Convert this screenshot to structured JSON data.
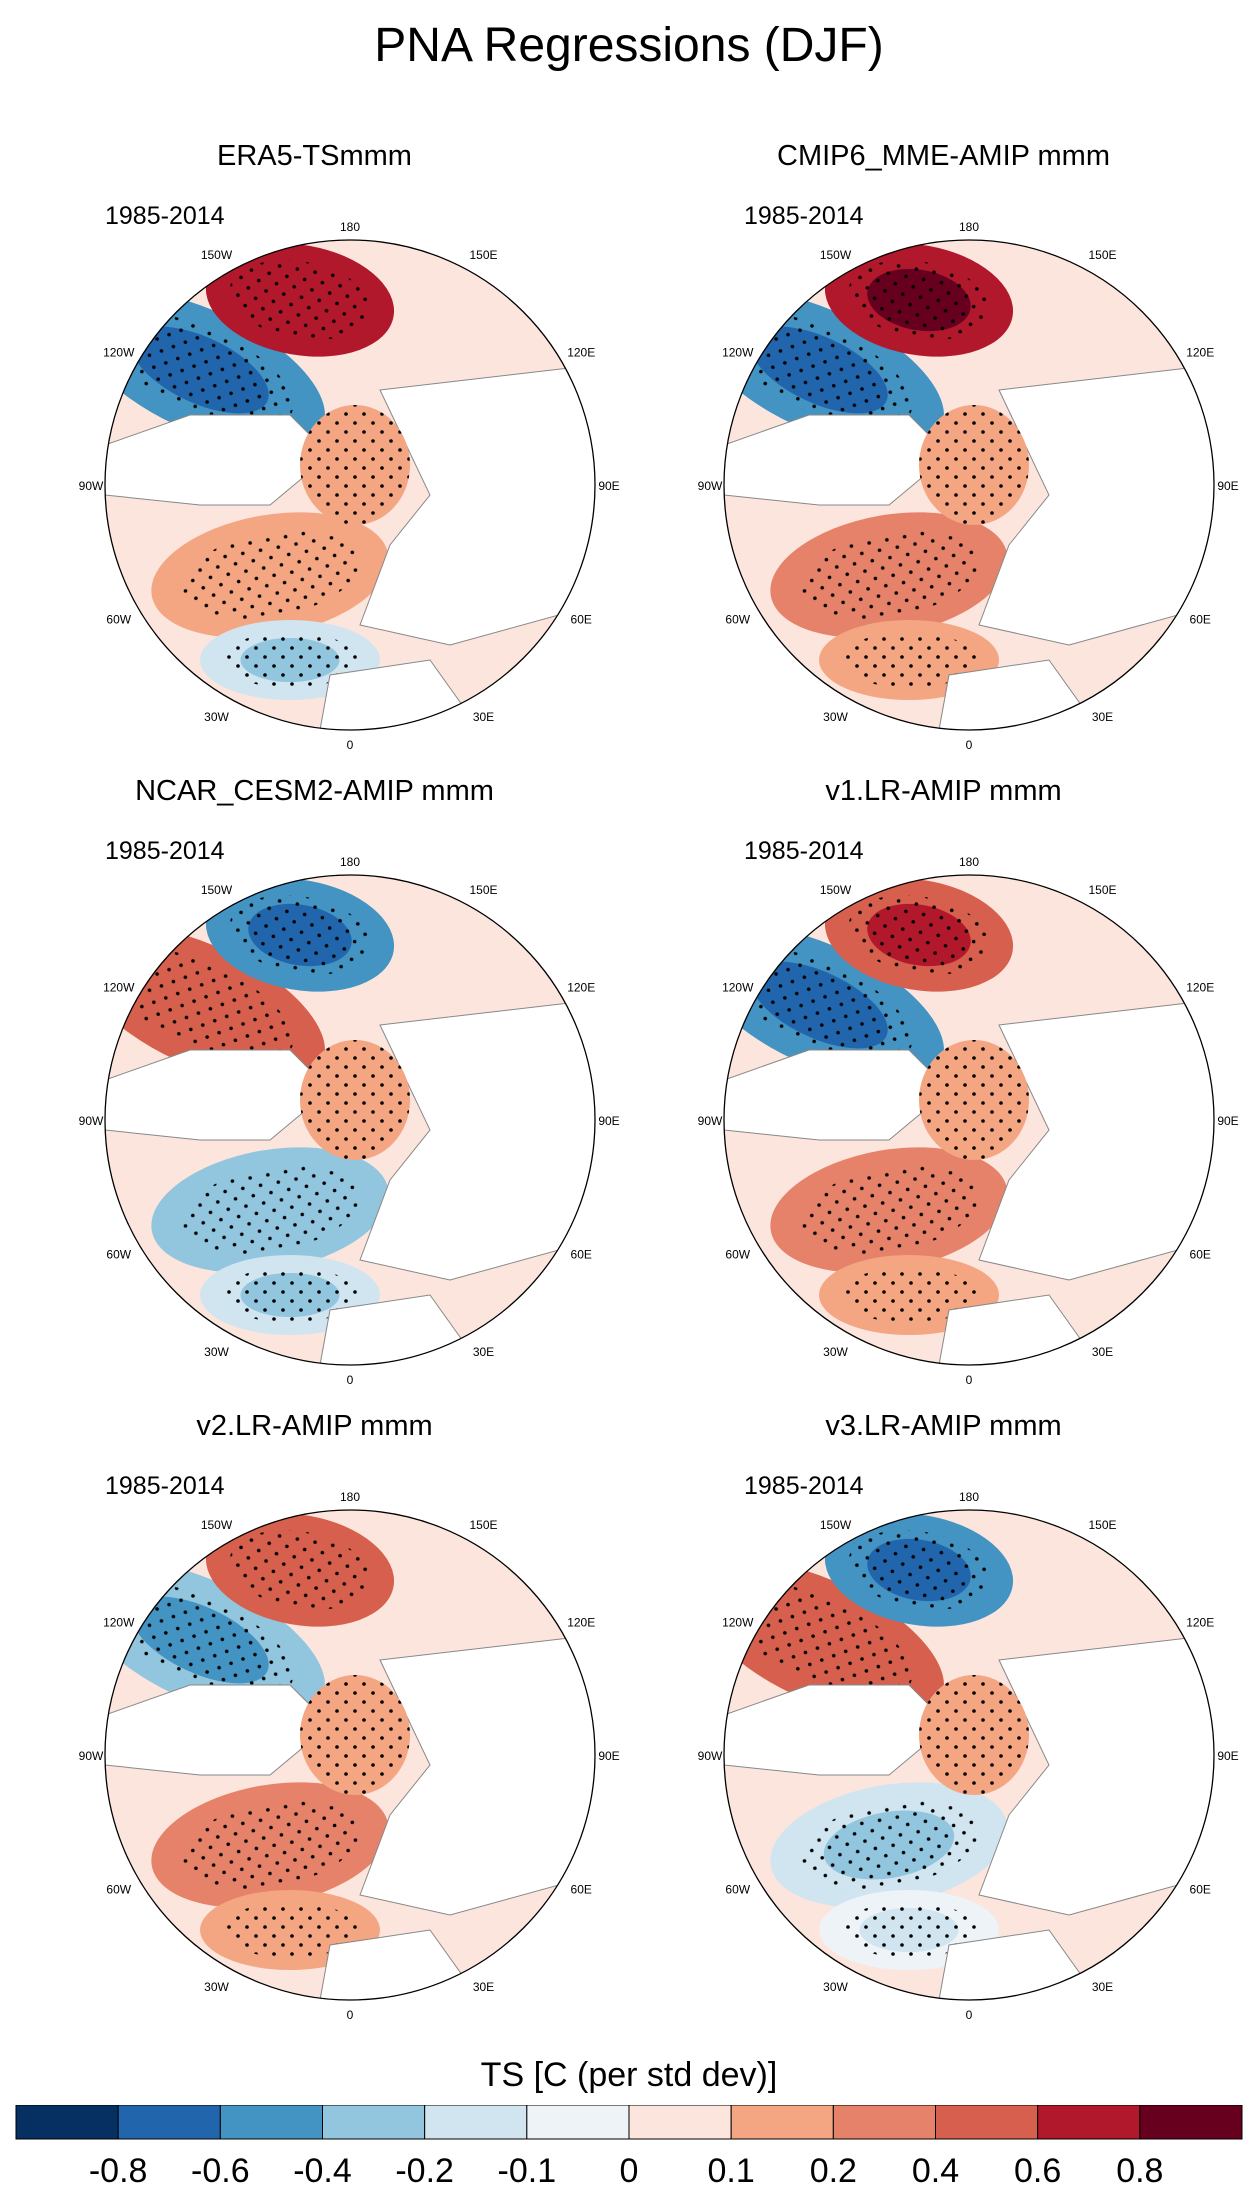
{
  "title": "PNA Regressions (DJF)",
  "chart_data": {
    "type": "heatmap",
    "projection": "north polar stereographic",
    "stippling": "statistically significant regions",
    "longitude_labels": [
      "180",
      "150E",
      "120E",
      "90E",
      "60E",
      "30E",
      "0",
      "30W",
      "60W",
      "90W",
      "120W",
      "150W"
    ],
    "panels": [
      {
        "title": "ERA5-TSmmm",
        "period": "1985-2014",
        "pattern": {
          "north_pacific": 0.6,
          "west_na_coast": -0.5,
          "arctic": 0.1,
          "atlantic": 0.1,
          "sub_atlantic": -0.2
        }
      },
      {
        "title": "CMIP6_MME-AMIP  mmm",
        "period": "1985-2014",
        "pattern": {
          "north_pacific": 0.7,
          "west_na_coast": -0.5,
          "arctic": 0.1,
          "atlantic": 0.2,
          "sub_atlantic": 0.1
        }
      },
      {
        "title": "NCAR_CESM2-AMIP  mmm",
        "period": "1985-2014",
        "pattern": {
          "north_pacific": -0.6,
          "west_na_coast": 0.4,
          "arctic": 0.1,
          "atlantic": -0.3,
          "sub_atlantic": -0.2
        }
      },
      {
        "title": "v1.LR-AMIP  mmm",
        "period": "1985-2014",
        "pattern": {
          "north_pacific": 0.5,
          "west_na_coast": -0.5,
          "arctic": 0.1,
          "atlantic": 0.3,
          "sub_atlantic": 0.1
        }
      },
      {
        "title": "v2.LR-AMIP  mmm",
        "period": "1985-2014",
        "pattern": {
          "north_pacific": 0.4,
          "west_na_coast": -0.4,
          "arctic": 0.1,
          "atlantic": 0.2,
          "sub_atlantic": 0.1
        }
      },
      {
        "title": "v3.LR-AMIP  mmm",
        "period": "1985-2014",
        "pattern": {
          "north_pacific": -0.6,
          "west_na_coast": 0.4,
          "arctic": 0.1,
          "atlantic": -0.2,
          "sub_atlantic": -0.1
        }
      }
    ],
    "colorbar": {
      "title": "TS [C (per std dev)]",
      "labels": [
        "-0.8",
        "-0.6",
        "-0.4",
        "-0.2",
        "-0.1",
        "0",
        "0.1",
        "0.2",
        "0.4",
        "0.6",
        "0.8"
      ],
      "colors": [
        "#053061",
        "#2166ac",
        "#4393c3",
        "#92c5de",
        "#d1e5f0",
        "#eef3f8",
        "#fbe5dc",
        "#f4a582",
        "#e6826a",
        "#d6604d",
        "#b2182b",
        "#67001f"
      ]
    }
  }
}
